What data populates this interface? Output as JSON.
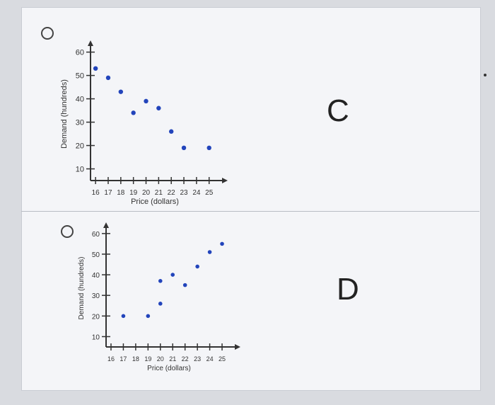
{
  "options": [
    {
      "letter": "C"
    },
    {
      "letter": "D"
    }
  ],
  "chart_data": [
    {
      "type": "scatter",
      "xlabel": "Price (dollars)",
      "ylabel": "Demand (hundreds)",
      "x_ticks": [
        16,
        17,
        18,
        19,
        20,
        21,
        22,
        23,
        24,
        25
      ],
      "y_ticks": [
        10,
        20,
        30,
        40,
        50,
        60
      ],
      "xlim": [
        15.6,
        25.8
      ],
      "ylim": [
        5,
        62
      ],
      "points": [
        {
          "x": 16,
          "y": 53
        },
        {
          "x": 17,
          "y": 49
        },
        {
          "x": 18,
          "y": 43
        },
        {
          "x": 19,
          "y": 34
        },
        {
          "x": 20,
          "y": 39
        },
        {
          "x": 21,
          "y": 36
        },
        {
          "x": 22,
          "y": 26
        },
        {
          "x": 23,
          "y": 19
        },
        {
          "x": 25,
          "y": 19
        }
      ],
      "point_color": "#2244bb"
    },
    {
      "type": "scatter",
      "xlabel": "Price (dollars)",
      "ylabel": "Demand (hundreds)",
      "x_ticks": [
        16,
        17,
        18,
        19,
        20,
        21,
        22,
        23,
        24,
        25
      ],
      "y_ticks": [
        10,
        20,
        30,
        40,
        50,
        60
      ],
      "xlim": [
        15.6,
        25.8
      ],
      "ylim": [
        5,
        62
      ],
      "points": [
        {
          "x": 17,
          "y": 20
        },
        {
          "x": 19,
          "y": 20
        },
        {
          "x": 20,
          "y": 26
        },
        {
          "x": 20,
          "y": 37
        },
        {
          "x": 21,
          "y": 40
        },
        {
          "x": 22,
          "y": 35
        },
        {
          "x": 23,
          "y": 44
        },
        {
          "x": 24,
          "y": 51
        },
        {
          "x": 25,
          "y": 55
        }
      ],
      "point_color": "#2244bb"
    }
  ]
}
